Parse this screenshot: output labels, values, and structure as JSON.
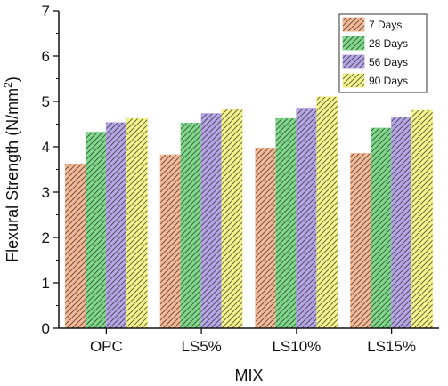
{
  "chart_data": {
    "type": "bar",
    "xlabel": "MIX",
    "ylabel": "Flexural Strength (N/mm",
    "ylabel_sup": "2",
    "ylabel_close": ")",
    "categories": [
      "OPC",
      "LS5%",
      "LS10%",
      "LS15%"
    ],
    "ylim": [
      0,
      7
    ],
    "yticks": [
      "0",
      "1",
      "2",
      "3",
      "4",
      "5",
      "6",
      "7"
    ],
    "grid": false,
    "legend_position": "top-right",
    "series": [
      {
        "name": "7 Days",
        "color": "#f7b896",
        "values": [
          3.62,
          3.82,
          3.97,
          3.85
        ]
      },
      {
        "name": "28 Days",
        "color": "#7fd98a",
        "values": [
          4.32,
          4.52,
          4.62,
          4.41
        ]
      },
      {
        "name": "56 Days",
        "color": "#b7a6e6",
        "values": [
          4.53,
          4.73,
          4.85,
          4.65
        ]
      },
      {
        "name": "90 Days",
        "color": "#f5f58c",
        "values": [
          4.62,
          4.83,
          5.1,
          4.8
        ]
      }
    ]
  }
}
